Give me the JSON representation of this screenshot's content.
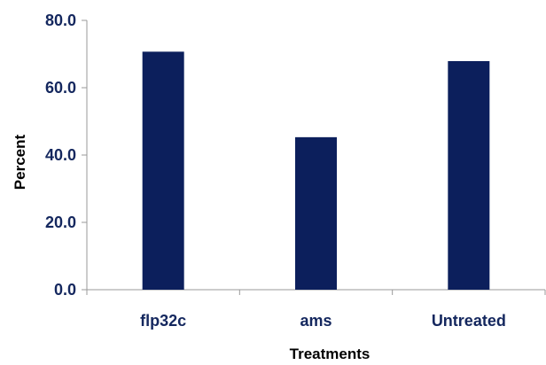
{
  "chart_data": {
    "type": "bar",
    "categories": [
      "flp32c",
      "ams",
      "Untreated"
    ],
    "values": [
      70.7,
      45.3,
      67.9
    ],
    "xlabel": "Treatments",
    "ylabel": "Percent",
    "ylim": [
      0,
      80
    ],
    "yticks": [
      "0.0",
      "20.0",
      "40.0",
      "60.0",
      "80.0"
    ],
    "ytick_values": [
      0,
      20,
      40,
      60,
      80
    ],
    "grid": false,
    "legend": "none"
  },
  "colors": {
    "bar": "#0c1f5c",
    "tick_text": "#14275e",
    "axis": "#9a9a9a",
    "title_text": "#000000"
  }
}
